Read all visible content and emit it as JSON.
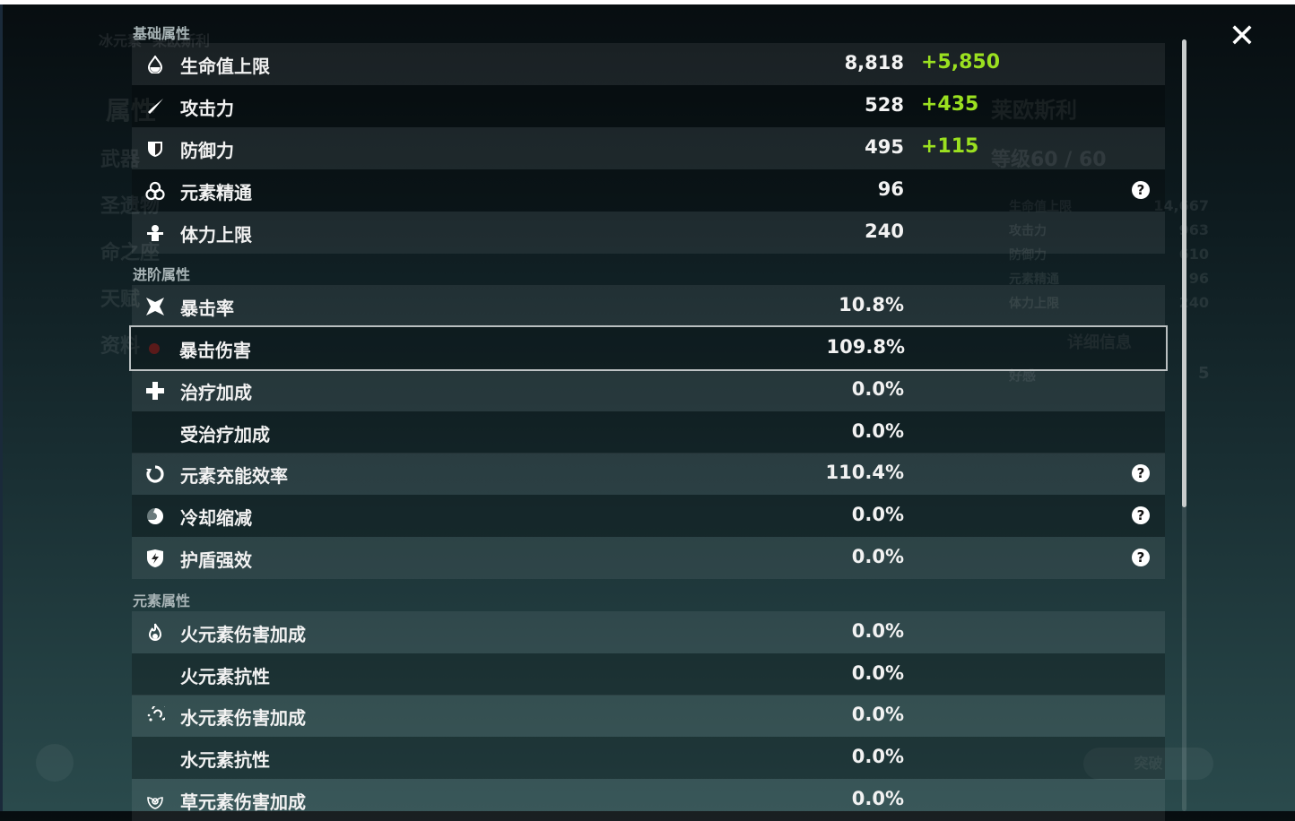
{
  "background": {
    "element_name": "冰元素",
    "char_name_small": "莱欧斯利",
    "nav": [
      "属性",
      "武器",
      "圣遗物",
      "命之座",
      "天赋",
      "资料"
    ],
    "char_name": "莱欧斯利",
    "level": "等级60 / 60",
    "side_stats": [
      {
        "label": "生命值上限",
        "value": "14,667"
      },
      {
        "label": "攻击力",
        "value": "963"
      },
      {
        "label": "防御力",
        "value": "610"
      },
      {
        "label": "元素精通",
        "value": "96"
      },
      {
        "label": "体力上限",
        "value": "240"
      }
    ],
    "details_button": "详细信息",
    "friendship_label": "好感",
    "friendship_value": "5",
    "ascend_button": "突破"
  },
  "sections": [
    {
      "title": "基础属性",
      "rows": [
        {
          "icon": "hp-drop-icon",
          "label": "生命值上限",
          "value": "8,818",
          "bonus": "+5,850"
        },
        {
          "icon": "sword-icon",
          "label": "攻击力",
          "value": "528",
          "bonus": "+435"
        },
        {
          "icon": "shield-icon",
          "label": "防御力",
          "value": "495",
          "bonus": "+115"
        },
        {
          "icon": "elemental-mastery-icon",
          "label": "元素精通",
          "value": "96",
          "help": "?"
        },
        {
          "icon": "stamina-icon",
          "label": "体力上限",
          "value": "240"
        }
      ]
    },
    {
      "title": "进阶属性",
      "rows": [
        {
          "icon": "crit-rate-icon",
          "label": "暴击率",
          "value": "10.8%"
        },
        {
          "icon": "crit-dmg-icon",
          "label": "暴击伤害",
          "value": "109.8%",
          "selected": true
        },
        {
          "icon": "healing-cross-icon",
          "label": "治疗加成",
          "value": "0.0%"
        },
        {
          "icon": "",
          "label": "受治疗加成",
          "value": "0.0%"
        },
        {
          "icon": "energy-recharge-icon",
          "label": "元素充能效率",
          "value": "110.4%",
          "help": "?"
        },
        {
          "icon": "cooldown-icon",
          "label": "冷却缩减",
          "value": "0.0%",
          "help": "?"
        },
        {
          "icon": "shield-strength-icon",
          "label": "护盾强效",
          "value": "0.0%",
          "help": "?"
        }
      ]
    },
    {
      "title": "元素属性",
      "rows": [
        {
          "icon": "pyro-icon",
          "label": "火元素伤害加成",
          "value": "0.0%"
        },
        {
          "icon": "",
          "label": "火元素抗性",
          "value": "0.0%"
        },
        {
          "icon": "hydro-icon",
          "label": "水元素伤害加成",
          "value": "0.0%"
        },
        {
          "icon": "",
          "label": "水元素抗性",
          "value": "0.0%"
        },
        {
          "icon": "dendro-icon",
          "label": "草元素伤害加成",
          "value": "0.0%"
        }
      ]
    }
  ],
  "close_icon": "close-icon",
  "colors": {
    "bonus": "#9be020",
    "selected_border": "#b9bfc0"
  }
}
